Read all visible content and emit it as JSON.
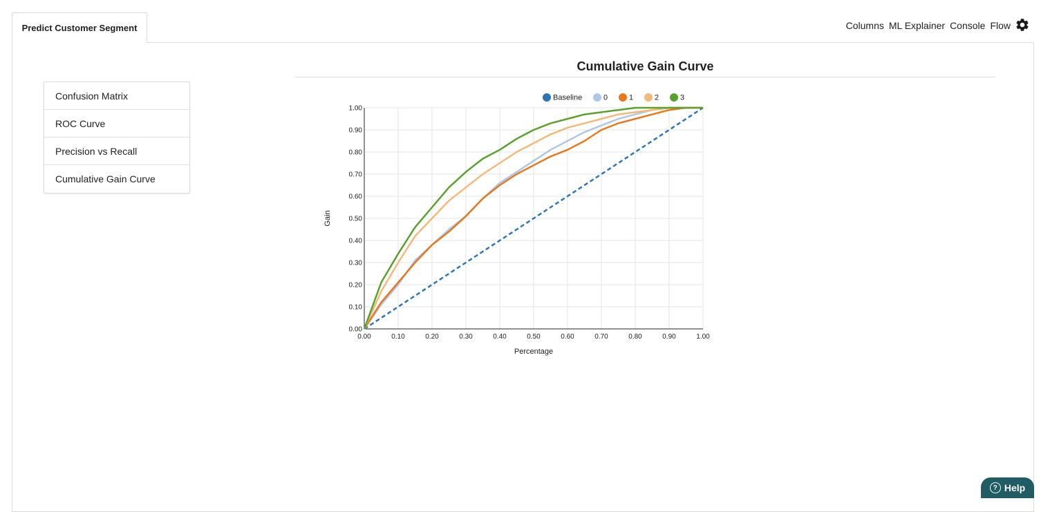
{
  "tab": {
    "label": "Predict Customer Segment"
  },
  "top_nav": {
    "items": [
      "Columns",
      "ML Explainer",
      "Console",
      "Flow"
    ],
    "settings_icon": "gear-icon"
  },
  "side_menu": {
    "items": [
      "Confusion Matrix",
      "ROC Curve",
      "Precision vs Recall",
      "Cumulative Gain Curve"
    ]
  },
  "help": {
    "label": "Help",
    "icon": "question-circle-icon"
  },
  "chart_data": {
    "type": "line",
    "title": "Cumulative Gain Curve",
    "xlabel": "Percentage",
    "ylabel": "Gain",
    "xlim": [
      0,
      1
    ],
    "ylim": [
      0,
      1
    ],
    "xticks": [
      "0.00",
      "0.10",
      "0.20",
      "0.30",
      "0.40",
      "0.50",
      "0.60",
      "0.70",
      "0.80",
      "0.90",
      "1.00"
    ],
    "yticks": [
      "0.00",
      "0.10",
      "0.20",
      "0.30",
      "0.40",
      "0.50",
      "0.60",
      "0.70",
      "0.80",
      "0.90",
      "1.00"
    ],
    "grid": true,
    "legend_position": "top",
    "x": [
      0,
      0.05,
      0.1,
      0.15,
      0.2,
      0.25,
      0.3,
      0.35,
      0.4,
      0.45,
      0.5,
      0.55,
      0.6,
      0.65,
      0.7,
      0.75,
      0.8,
      0.85,
      0.9,
      0.95,
      1.0
    ],
    "series": [
      {
        "name": "Baseline",
        "color": "#2e75b6",
        "dashed": true,
        "values": [
          0,
          0.05,
          0.1,
          0.15,
          0.2,
          0.25,
          0.3,
          0.35,
          0.4,
          0.45,
          0.5,
          0.55,
          0.6,
          0.65,
          0.7,
          0.75,
          0.8,
          0.85,
          0.9,
          0.95,
          1.0
        ]
      },
      {
        "name": "0",
        "color": "#aec7e8",
        "dashed": false,
        "values": [
          0,
          0.11,
          0.2,
          0.31,
          0.38,
          0.45,
          0.51,
          0.59,
          0.66,
          0.71,
          0.76,
          0.81,
          0.85,
          0.89,
          0.92,
          0.95,
          0.97,
          0.99,
          1.0,
          1.0,
          1.0
        ]
      },
      {
        "name": "1",
        "color": "#e6781e",
        "dashed": false,
        "values": [
          0,
          0.12,
          0.21,
          0.3,
          0.38,
          0.44,
          0.51,
          0.59,
          0.65,
          0.7,
          0.74,
          0.78,
          0.81,
          0.85,
          0.9,
          0.93,
          0.95,
          0.97,
          0.99,
          1.0,
          1.0
        ]
      },
      {
        "name": "2",
        "color": "#f2b97a",
        "dashed": false,
        "values": [
          0,
          0.17,
          0.3,
          0.42,
          0.5,
          0.58,
          0.64,
          0.7,
          0.75,
          0.8,
          0.84,
          0.88,
          0.91,
          0.93,
          0.95,
          0.97,
          0.98,
          0.99,
          1.0,
          1.0,
          1.0
        ]
      },
      {
        "name": "3",
        "color": "#5aa02c",
        "dashed": false,
        "values": [
          0,
          0.21,
          0.34,
          0.46,
          0.55,
          0.64,
          0.71,
          0.77,
          0.81,
          0.86,
          0.9,
          0.93,
          0.95,
          0.97,
          0.98,
          0.99,
          1.0,
          1.0,
          1.0,
          1.0,
          1.0
        ]
      }
    ]
  }
}
